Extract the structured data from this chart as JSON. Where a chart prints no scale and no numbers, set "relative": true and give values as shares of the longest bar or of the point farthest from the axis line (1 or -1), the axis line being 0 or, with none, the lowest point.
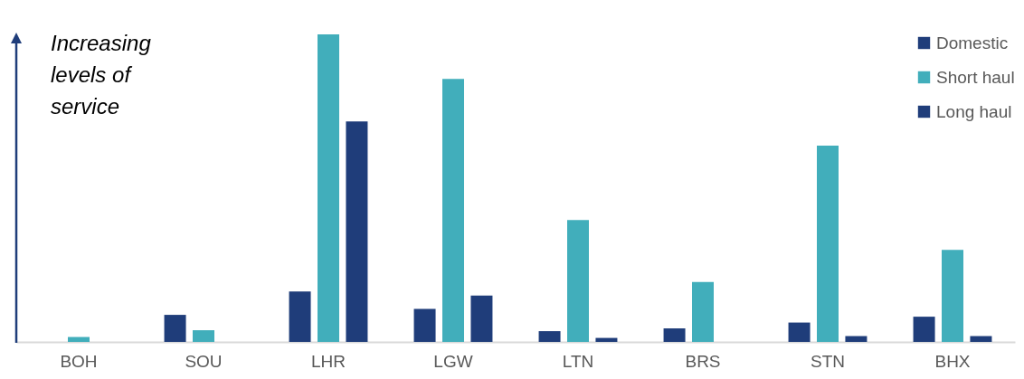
{
  "chart_data": {
    "type": "bar",
    "relative": true,
    "categories": [
      "BOH",
      "SOU",
      "LHR",
      "LGW",
      "LTN",
      "BRS",
      "STN",
      "BHX"
    ],
    "series": [
      {
        "name": "Domestic",
        "color": "#1f3d7a",
        "values": [
          0,
          0.088,
          0.164,
          0.107,
          0.035,
          0.044,
          0.063,
          0.082
        ]
      },
      {
        "name": "Short haul",
        "color": "#41aebb",
        "values": [
          0.016,
          0.038,
          1,
          0.855,
          0.396,
          0.195,
          0.638,
          0.299
        ]
      },
      {
        "name": "Long haul",
        "color": "#1f3d7a",
        "values": [
          0,
          0,
          0.717,
          0.151,
          0.013,
          0,
          0.019,
          0.019
        ]
      }
    ],
    "annotations": [
      "Increasing levels of service"
    ],
    "legend": "top right",
    "grid": false
  }
}
